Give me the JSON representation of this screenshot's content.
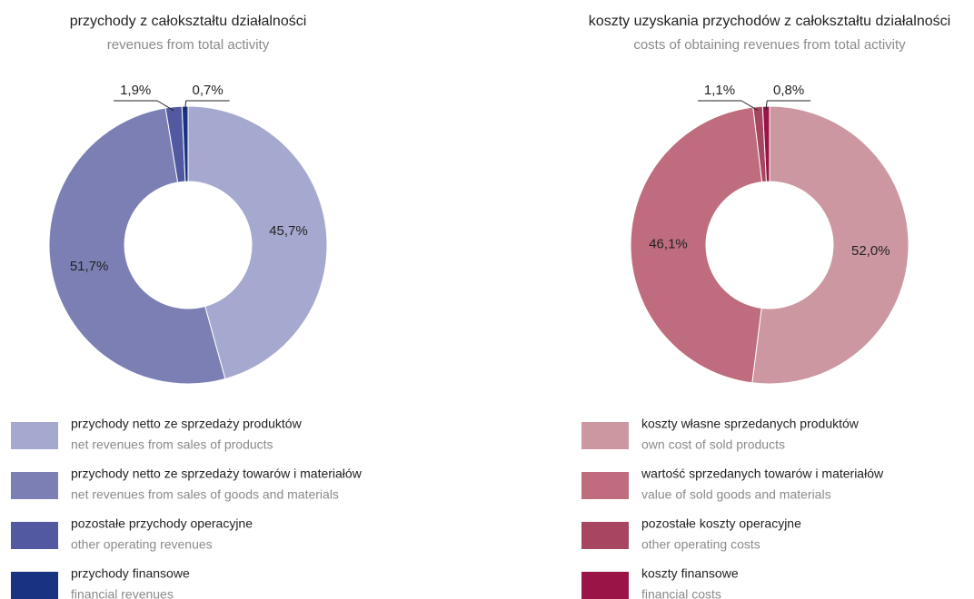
{
  "chart_data": [
    {
      "type": "pie",
      "title": "przychody z całokształtu działalności",
      "subtitle": "revenues from total activity",
      "categories": [
        "przychody netto ze sprzedaży produktów",
        "przychody netto ze sprzedaży towarów i materiałów",
        "pozostałe przychody operacyjne",
        "przychody finansowe"
      ],
      "categories_en": [
        "net revenues from sales of products",
        "net revenues from sales of goods and materials",
        "other operating revenues",
        "financial revenues"
      ],
      "values": [
        45.7,
        51.7,
        1.9,
        0.7
      ],
      "value_labels": [
        "45,7%",
        "51,7%",
        "1,9%",
        "0,7%"
      ],
      "colors": [
        "#a6a9cf",
        "#7b7fb4",
        "#5259a0",
        "#1a3282"
      ]
    },
    {
      "type": "pie",
      "title": "koszty uzyskania przychodów z całokształtu działalności",
      "subtitle": "costs of obtaining revenues from total activity",
      "categories": [
        "koszty własne sprzedanych produktów",
        "wartość sprzedanych towarów i materiałów",
        "pozostałe koszty operacyjne",
        "koszty finansowe"
      ],
      "categories_en": [
        "own cost of sold products",
        "value of sold goods and materials",
        "other operating costs",
        "financial costs"
      ],
      "values": [
        52.0,
        46.1,
        1.1,
        0.8
      ],
      "value_labels": [
        "52,0%",
        "46,1%",
        "1,1%",
        "0,8%"
      ],
      "colors": [
        "#cc97a0",
        "#bf6d7e",
        "#a84561",
        "#9a1448"
      ]
    }
  ]
}
